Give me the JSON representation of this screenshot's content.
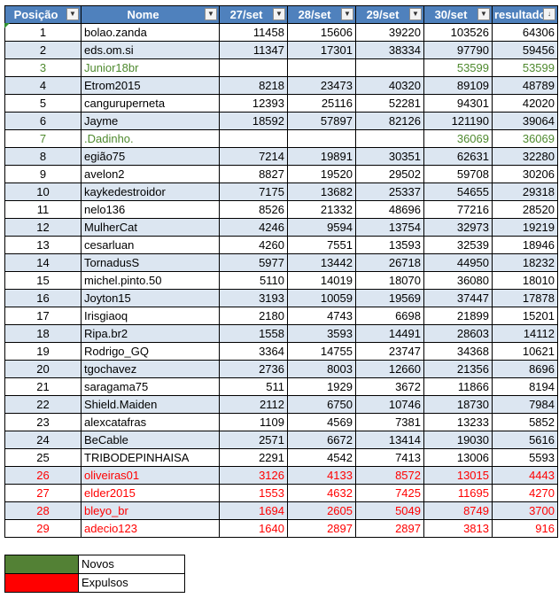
{
  "headers": [
    "Posição",
    "Nome",
    "27/set",
    "28/set",
    "29/set",
    "30/set",
    "resultado"
  ],
  "filter_icons": [
    "dropdown-arrow",
    "dropdown-arrow",
    "dropdown-arrow",
    "dropdown-arrow",
    "dropdown-arrow",
    "dropdown-arrow",
    "sort-descending-filter"
  ],
  "filter_glyphs": [
    "▼",
    "▼",
    "▼",
    "▼",
    "▼",
    "▼",
    "↓"
  ],
  "rows": [
    {
      "pos": "1",
      "name": "bolao.zanda",
      "d27": "11458",
      "d28": "15606",
      "d29": "39220",
      "d30": "103526",
      "result": "64306",
      "status": "normal"
    },
    {
      "pos": "2",
      "name": "eds.om.si",
      "d27": "11347",
      "d28": "17301",
      "d29": "38334",
      "d30": "97790",
      "result": "59456",
      "status": "normal"
    },
    {
      "pos": "3",
      "name": "Junior18br",
      "d27": "",
      "d28": "",
      "d29": "",
      "d30": "53599",
      "result": "53599",
      "status": "new"
    },
    {
      "pos": "4",
      "name": "Etrom2015",
      "d27": "8218",
      "d28": "23473",
      "d29": "40320",
      "d30": "89109",
      "result": "48789",
      "status": "normal"
    },
    {
      "pos": "5",
      "name": "canguruperneta",
      "d27": "12393",
      "d28": "25116",
      "d29": "52281",
      "d30": "94301",
      "result": "42020",
      "status": "normal"
    },
    {
      "pos": "6",
      "name": "Jayme",
      "d27": "18592",
      "d28": "57897",
      "d29": "82126",
      "d30": "121190",
      "result": "39064",
      "status": "normal"
    },
    {
      "pos": "7",
      "name": ".Dadinho.",
      "d27": "",
      "d28": "",
      "d29": "",
      "d30": "36069",
      "result": "36069",
      "status": "new"
    },
    {
      "pos": "8",
      "name": "egião75",
      "d27": "7214",
      "d28": "19891",
      "d29": "30351",
      "d30": "62631",
      "result": "32280",
      "status": "normal"
    },
    {
      "pos": "9",
      "name": "avelon2",
      "d27": "8827",
      "d28": "19520",
      "d29": "29502",
      "d30": "59708",
      "result": "30206",
      "status": "normal"
    },
    {
      "pos": "10",
      "name": "kaykedestroidor",
      "d27": "7175",
      "d28": "13682",
      "d29": "25337",
      "d30": "54655",
      "result": "29318",
      "status": "normal"
    },
    {
      "pos": "11",
      "name": "nelo136",
      "d27": "8526",
      "d28": "21332",
      "d29": "48696",
      "d30": "77216",
      "result": "28520",
      "status": "normal"
    },
    {
      "pos": "12",
      "name": "MulherCat",
      "d27": "4246",
      "d28": "9594",
      "d29": "13754",
      "d30": "32973",
      "result": "19219",
      "status": "normal"
    },
    {
      "pos": "13",
      "name": "cesarluan",
      "d27": "4260",
      "d28": "7551",
      "d29": "13593",
      "d30": "32539",
      "result": "18946",
      "status": "normal"
    },
    {
      "pos": "14",
      "name": "TornadusS",
      "d27": "5977",
      "d28": "13442",
      "d29": "26718",
      "d30": "44950",
      "result": "18232",
      "status": "normal"
    },
    {
      "pos": "15",
      "name": "michel.pinto.50",
      "d27": "5110",
      "d28": "14019",
      "d29": "18070",
      "d30": "36080",
      "result": "18010",
      "status": "normal"
    },
    {
      "pos": "16",
      "name": "Joyton15",
      "d27": "3193",
      "d28": "10059",
      "d29": "19569",
      "d30": "37447",
      "result": "17878",
      "status": "normal"
    },
    {
      "pos": "17",
      "name": "Irisgiaoq",
      "d27": "2180",
      "d28": "4743",
      "d29": "6698",
      "d30": "21899",
      "result": "15201",
      "status": "normal"
    },
    {
      "pos": "18",
      "name": "Ripa.br2",
      "d27": "1558",
      "d28": "3593",
      "d29": "14491",
      "d30": "28603",
      "result": "14112",
      "status": "normal"
    },
    {
      "pos": "19",
      "name": "Rodrigo_GQ",
      "d27": "3364",
      "d28": "14755",
      "d29": "23747",
      "d30": "34368",
      "result": "10621",
      "status": "normal"
    },
    {
      "pos": "20",
      "name": "tgochavez",
      "d27": "2736",
      "d28": "8003",
      "d29": "12660",
      "d30": "21356",
      "result": "8696",
      "status": "normal"
    },
    {
      "pos": "21",
      "name": "saragama75",
      "d27": "511",
      "d28": "1929",
      "d29": "3672",
      "d30": "11866",
      "result": "8194",
      "status": "normal"
    },
    {
      "pos": "22",
      "name": "Shield.Maiden",
      "d27": "2112",
      "d28": "6750",
      "d29": "10746",
      "d30": "18730",
      "result": "7984",
      "status": "normal"
    },
    {
      "pos": "23",
      "name": "alexcatafras",
      "d27": "1109",
      "d28": "4569",
      "d29": "7381",
      "d30": "13233",
      "result": "5852",
      "status": "normal"
    },
    {
      "pos": "24",
      "name": "BeCable",
      "d27": "2571",
      "d28": "6672",
      "d29": "13414",
      "d30": "19030",
      "result": "5616",
      "status": "normal"
    },
    {
      "pos": "25",
      "name": "TRIBODEPINHAISA",
      "d27": "2291",
      "d28": "4542",
      "d29": "7413",
      "d30": "13006",
      "result": "5593",
      "status": "normal"
    },
    {
      "pos": "26",
      "name": "oliveiras01",
      "d27": "3126",
      "d28": "4133",
      "d29": "8572",
      "d30": "13015",
      "result": "4443",
      "status": "expelled"
    },
    {
      "pos": "27",
      "name": "elder2015",
      "d27": "1553",
      "d28": "4632",
      "d29": "7425",
      "d30": "11695",
      "result": "4270",
      "status": "expelled"
    },
    {
      "pos": "28",
      "name": "bleyo_br",
      "d27": "1694",
      "d28": "2605",
      "d29": "5049",
      "d30": "8749",
      "result": "3700",
      "status": "expelled"
    },
    {
      "pos": "29",
      "name": "adecio123",
      "d27": "1640",
      "d28": "2897",
      "d29": "2897",
      "d30": "3813",
      "result": "916",
      "status": "expelled"
    }
  ],
  "legend": [
    {
      "label": "Novos",
      "color": "#538135"
    },
    {
      "label": "Expulsos",
      "color": "#ff0000"
    }
  ],
  "colors": {
    "header_bg": "#4f81bd",
    "band": "#dce6f1",
    "new_text": "#4f8a2f",
    "expelled_text": "#ff0000"
  }
}
